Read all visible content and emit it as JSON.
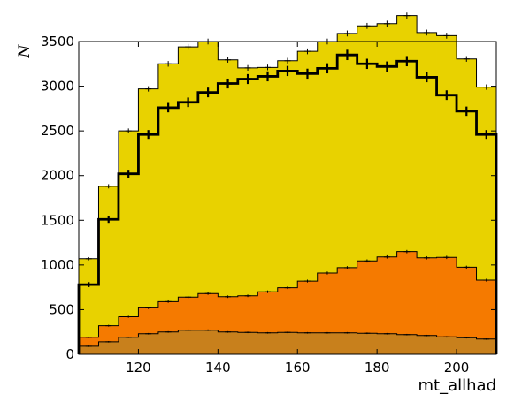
{
  "chart_data": {
    "type": "histogram",
    "title": "",
    "xlabel": "mt_allhad",
    "ylabel": "N",
    "xlim": [
      105,
      210
    ],
    "ylim": [
      0,
      3500
    ],
    "x_ticks": [
      120,
      140,
      160,
      180,
      200
    ],
    "y_ticks": [
      0,
      500,
      1000,
      1500,
      2000,
      2500,
      3000,
      3500
    ],
    "grid": false,
    "bin_edges": [
      105,
      110,
      115,
      120,
      125,
      130,
      135,
      140,
      145,
      150,
      155,
      160,
      165,
      170,
      175,
      180,
      185,
      190,
      195,
      200,
      205,
      210
    ],
    "series": [
      {
        "kind": "stacked-fill",
        "color": "#c8801c",
        "values": [
          90,
          140,
          190,
          230,
          250,
          270,
          270,
          250,
          245,
          240,
          245,
          240,
          240,
          240,
          235,
          230,
          220,
          210,
          195,
          185,
          170
        ]
      },
      {
        "kind": "stacked-fill",
        "color": "#f57a00",
        "values": [
          100,
          180,
          230,
          290,
          340,
          370,
          410,
          395,
          410,
          460,
          500,
          580,
          670,
          730,
          810,
          860,
          930,
          870,
          890,
          790,
          660
        ]
      },
      {
        "kind": "stacked-fill",
        "color": "#e8d200",
        "values": [
          880,
          1560,
          2080,
          2450,
          2660,
          2800,
          2820,
          2650,
          2550,
          2510,
          2540,
          2570,
          2590,
          2620,
          2630,
          2610,
          2640,
          2520,
          2480,
          2330,
          2160
        ]
      },
      {
        "kind": "data-step",
        "color": "#000000",
        "values": [
          780,
          1510,
          2020,
          2460,
          2760,
          2820,
          2930,
          3030,
          3080,
          3110,
          3170,
          3140,
          3200,
          3350,
          3250,
          3220,
          3280,
          3100,
          2900,
          2720,
          2460
        ]
      }
    ]
  }
}
